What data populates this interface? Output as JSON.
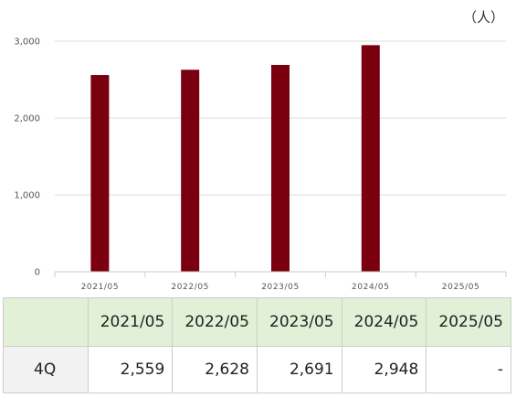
{
  "chart_data": {
    "type": "bar",
    "unit_label": "（人）",
    "categories": [
      "2021/05",
      "2022/05",
      "2023/05",
      "2024/05",
      "2025/05"
    ],
    "series": [
      {
        "name": "4Q",
        "values": [
          2559,
          2628,
          2691,
          2948,
          null
        ]
      }
    ],
    "ylim": [
      0,
      3000
    ],
    "y_ticks": [
      0,
      1000,
      2000,
      3000
    ],
    "y_tick_labels": [
      "0",
      "1,000",
      "2,000",
      "3,000"
    ],
    "grid": true,
    "bar_color": "#7a0010",
    "title": "",
    "xlabel": "",
    "ylabel": ""
  },
  "table": {
    "headers": [
      "2021/05",
      "2022/05",
      "2023/05",
      "2024/05",
      "2025/05"
    ],
    "rows": [
      {
        "label": "4Q",
        "cells": [
          "2,559",
          "2,628",
          "2,691",
          "2,948",
          "-"
        ]
      }
    ]
  }
}
